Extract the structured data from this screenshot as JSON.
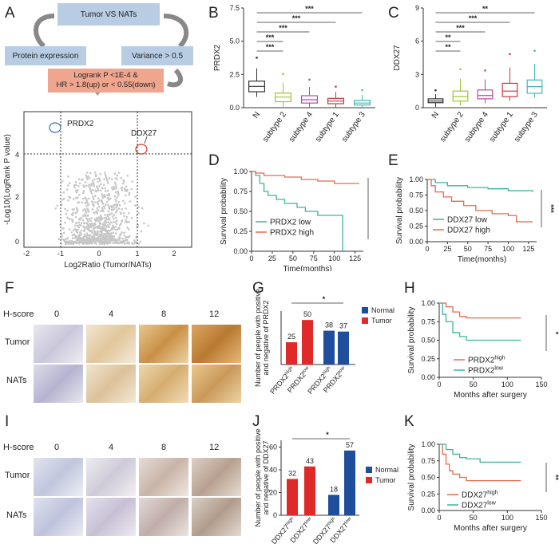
{
  "panels": [
    "A",
    "B",
    "C",
    "D",
    "E",
    "F",
    "G",
    "H",
    "I",
    "J",
    "K"
  ],
  "A": {
    "flow": {
      "top": "Tumor   VS   NATs",
      "left": "Protein expression",
      "right": "Variance >  0.5",
      "bottom_line1": "Logrank P <1E-4 &",
      "bottom_line2": "HR > 1.8(up) or < 0.55(down)"
    },
    "volcano": {
      "xlabel": "Log2Ratio  (Tumor/NATs)",
      "ylabel": "-Log10(LogRank P value)",
      "xticks": [
        "-2",
        "-1",
        "0",
        "1",
        "2"
      ],
      "yticks": [
        "0",
        "2",
        "4"
      ],
      "label1": "PRDX2",
      "label2": "DDX27",
      "color1": "#3a6fb5",
      "color2": "#d63a2a"
    }
  },
  "B": {
    "ylabel": "PRDX2",
    "yticks": [
      "0.0",
      "2.5",
      "5.0",
      "7.5"
    ],
    "sig": [
      "***",
      "***",
      "***",
      "***",
      "***"
    ]
  },
  "C": {
    "ylabel": "DDX27",
    "yticks": [
      "0",
      "3",
      "6",
      "9"
    ],
    "sig": [
      "**",
      "***",
      "***",
      "**",
      "**"
    ]
  },
  "D": {
    "ylabel": "Survival probability",
    "xlabel": "Time(months)",
    "yticks": [
      "0.00",
      "0.25",
      "0.50",
      "0.75",
      "1.00"
    ],
    "xticks": [
      "0",
      "25",
      "50",
      "75",
      "100",
      "125"
    ],
    "sig": "***",
    "legend": [
      "PRDX2 low",
      "PRDX2 high"
    ],
    "colors": [
      "#3cb59a",
      "#e26b4f"
    ]
  },
  "E": {
    "ylabel": "Survival probability",
    "xlabel": "Time(months)",
    "yticks": [
      "0.00",
      "0.25",
      "0.50",
      "0.75",
      "1.00"
    ],
    "xticks": [
      "0",
      "25",
      "50",
      "75",
      "100",
      "125"
    ],
    "sig": "***",
    "legend": [
      "DDX27 low",
      "DDX27 high"
    ],
    "colors": [
      "#3cb59a",
      "#e26b4f"
    ]
  },
  "F": {
    "header": "H-score",
    "cols": [
      "0",
      "4",
      "8",
      "12"
    ],
    "rows": [
      "Tumor",
      "NATs"
    ]
  },
  "G": {
    "ylabel_line1": "Number of people with positive",
    "ylabel_line2": "and negative of PRDX2",
    "values": [
      "25",
      "50",
      "38",
      "37"
    ],
    "legend": [
      "Normal",
      "Tumor"
    ],
    "sig": "*",
    "colors": [
      "#1f4e9c",
      "#e02a2a"
    ]
  },
  "H": {
    "ylabel": "Survival probability",
    "xlabel": "Months after surgery",
    "yticks": [
      "0.00",
      "0.25",
      "0.50",
      "0.75",
      "1.00"
    ],
    "xticks": [
      "0",
      "50",
      "100",
      "150"
    ],
    "sig": "*",
    "legend_base": [
      "PRDX2",
      "PRDX2"
    ],
    "legend_sup": [
      "high",
      "low"
    ]
  },
  "I": {
    "header": "H-score",
    "cols": [
      "0",
      "4",
      "8",
      "12"
    ],
    "rows": [
      "Tumor",
      "NATs"
    ]
  },
  "J": {
    "ylabel_line1": "Number of people with positive",
    "ylabel_line2": "and negative of DDX27",
    "yticks": [
      "0",
      "20",
      "40",
      "60"
    ],
    "values": [
      "32",
      "43",
      "18",
      "57"
    ],
    "legend": [
      "Normal",
      "Tumor"
    ],
    "sig": "*"
  },
  "K": {
    "ylabel": "Survival probability",
    "xlabel": "Months after surgery",
    "yticks": [
      "0.00",
      "0.25",
      "0.50",
      "0.75",
      "1.00"
    ],
    "xticks": [
      "0",
      "50",
      "100",
      "150"
    ],
    "sig": "**",
    "legend_base": [
      "DDX27",
      "DDX27"
    ],
    "legend_sup": [
      "high",
      "low"
    ]
  },
  "chart_data": [
    {
      "panel": "B",
      "type": "box",
      "categories": [
        "N",
        "subtype 2",
        "subtype 4",
        "subtype 1",
        "subtype 3"
      ],
      "medians": [
        1.6,
        0.8,
        0.6,
        0.5,
        0.35
      ],
      "q1": [
        1.2,
        0.45,
        0.35,
        0.3,
        0.2
      ],
      "q3": [
        2.0,
        1.1,
        0.9,
        0.7,
        0.55
      ],
      "ylabel": "PRDX2",
      "ylim": [
        0,
        7.5
      ]
    },
    {
      "panel": "C",
      "type": "box",
      "categories": [
        "N",
        "subtype 2",
        "subtype 4",
        "subtype 1",
        "subtype 3"
      ],
      "medians": [
        0.6,
        1.0,
        1.1,
        1.5,
        1.9
      ],
      "q1": [
        0.45,
        0.6,
        0.8,
        1.0,
        1.3
      ],
      "q3": [
        0.8,
        1.5,
        1.6,
        2.2,
        2.5
      ],
      "ylabel": "DDX27",
      "ylim": [
        0,
        9
      ]
    },
    {
      "panel": "G",
      "type": "bar",
      "categories": [
        "PRDX2 high",
        "PRDX2 low",
        "PRDX2 high",
        "PRDX2 low"
      ],
      "series": [
        {
          "name": "Tumor",
          "values": [
            25,
            50,
            null,
            null
          ]
        },
        {
          "name": "Normal",
          "values": [
            null,
            null,
            38,
            37
          ]
        }
      ]
    },
    {
      "panel": "J",
      "type": "bar",
      "categories": [
        "DDX27 high",
        "DDX27 low",
        "DDX27 high",
        "DDX27 low"
      ],
      "series": [
        {
          "name": "Tumor",
          "values": [
            32,
            43,
            null,
            null
          ]
        },
        {
          "name": "Normal",
          "values": [
            null,
            null,
            18,
            57
          ]
        }
      ],
      "ylim": [
        0,
        60
      ]
    },
    {
      "panel": "D",
      "type": "line",
      "series": [
        {
          "name": "PRDX2 low",
          "x": [
            0,
            5,
            10,
            15,
            20,
            30,
            40,
            55,
            65,
            80,
            105,
            110
          ],
          "y": [
            1.0,
            0.95,
            0.85,
            0.75,
            0.7,
            0.65,
            0.6,
            0.55,
            0.5,
            0.45,
            0.45,
            0.0
          ]
        },
        {
          "name": "PRDX2 high",
          "x": [
            0,
            5,
            15,
            40,
            60,
            80,
            100,
            130
          ],
          "y": [
            1.0,
            0.98,
            0.95,
            0.93,
            0.9,
            0.88,
            0.85,
            0.85
          ]
        }
      ],
      "xlim": [
        0,
        135
      ],
      "ylim": [
        0,
        1
      ]
    },
    {
      "panel": "E",
      "type": "line",
      "series": [
        {
          "name": "DDX27 low",
          "x": [
            0,
            10,
            25,
            50,
            75,
            100,
            130
          ],
          "y": [
            1.0,
            0.95,
            0.9,
            0.87,
            0.85,
            0.82,
            0.8
          ]
        },
        {
          "name": "DDX27 high",
          "x": [
            0,
            5,
            10,
            20,
            30,
            45,
            60,
            80,
            100,
            110,
            130
          ],
          "y": [
            1.0,
            0.9,
            0.8,
            0.72,
            0.65,
            0.58,
            0.5,
            0.45,
            0.42,
            0.32,
            0.32
          ]
        }
      ],
      "xlim": [
        0,
        135
      ],
      "ylim": [
        0,
        1
      ]
    },
    {
      "panel": "H",
      "type": "line",
      "series": [
        {
          "name": "PRDX2 high",
          "x": [
            0,
            10,
            20,
            30,
            40,
            120
          ],
          "y": [
            1.0,
            0.95,
            0.88,
            0.82,
            0.8,
            0.8
          ]
        },
        {
          "name": "PRDX2 low",
          "x": [
            0,
            5,
            10,
            20,
            30,
            40,
            120
          ],
          "y": [
            1.0,
            0.85,
            0.75,
            0.6,
            0.55,
            0.5,
            0.5
          ]
        }
      ],
      "xlim": [
        0,
        150
      ],
      "ylim": [
        0,
        1
      ]
    },
    {
      "panel": "K",
      "type": "line",
      "series": [
        {
          "name": "DDX27 high",
          "x": [
            0,
            5,
            10,
            15,
            20,
            30,
            40,
            120
          ],
          "y": [
            1.0,
            0.85,
            0.7,
            0.6,
            0.55,
            0.5,
            0.45,
            0.45
          ]
        },
        {
          "name": "DDX27 low",
          "x": [
            0,
            10,
            20,
            30,
            40,
            60,
            120
          ],
          "y": [
            1.0,
            0.92,
            0.85,
            0.8,
            0.78,
            0.73,
            0.73
          ]
        }
      ],
      "xlim": [
        0,
        150
      ],
      "ylim": [
        0,
        1
      ]
    }
  ]
}
